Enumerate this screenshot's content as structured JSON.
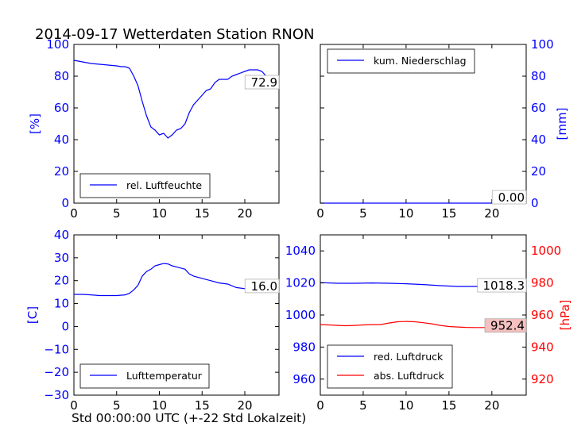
{
  "figure": {
    "title": "2014-09-17 Wetterdaten Station RNON",
    "xlabel": "Std 00:00:00 UTC (+-22 Std Lokalzeit)"
  },
  "colors": {
    "blue": "#0000ff",
    "red": "#ff0000",
    "black": "#000000",
    "valuebox_red": "#f5c0c0"
  },
  "chart_data": [
    {
      "type": "line",
      "id": "humidity",
      "xlim": [
        0,
        24
      ],
      "ylim": [
        0,
        100
      ],
      "xticks": [
        "0",
        "5",
        "10",
        "15",
        "20"
      ],
      "yticks": [
        "0",
        "20",
        "40",
        "60",
        "80",
        "100"
      ],
      "ylabel": "[%]",
      "grid": false,
      "legend_position": "lower-left",
      "current_value": "72.9",
      "series": [
        {
          "name": "rel. Luftfeuchte",
          "color": "#0000ff",
          "x": [
            0,
            0.5,
            1,
            2,
            3,
            4,
            5,
            5.5,
            6,
            6.5,
            7,
            7.5,
            8,
            8.5,
            9,
            9.5,
            10,
            10.5,
            11,
            11.5,
            12,
            12.5,
            13,
            13.5,
            14,
            14.5,
            15,
            15.5,
            16,
            16.5,
            17,
            17.5,
            18,
            18.5,
            19,
            19.5,
            20,
            20.5,
            21,
            21.5,
            22,
            22.5,
            23,
            23.5,
            24
          ],
          "y": [
            90,
            89.5,
            89,
            88,
            87.5,
            87,
            86.5,
            86,
            86,
            85,
            80,
            74,
            64,
            55,
            48,
            46,
            43,
            44,
            41,
            43,
            46,
            47,
            50,
            57,
            62,
            65,
            68,
            71,
            72,
            76,
            78,
            78,
            78,
            80,
            81,
            82,
            83,
            84,
            84,
            84,
            83,
            80,
            78,
            76,
            73
          ]
        }
      ]
    },
    {
      "type": "line",
      "id": "precipitation",
      "xlim": [
        0,
        24
      ],
      "ylim": [
        0,
        100
      ],
      "xticks": [
        "0",
        "5",
        "10",
        "15",
        "20"
      ],
      "yticks": [
        "0",
        "20",
        "40",
        "60",
        "80",
        "100"
      ],
      "ylabel": "[mm]",
      "yaxis_side": "right",
      "grid": false,
      "legend_position": "top-left",
      "current_value": "0.00",
      "series": [
        {
          "name": "kum. Niederschlag",
          "color": "#0000ff",
          "x": [
            0,
            24
          ],
          "y": [
            0,
            0
          ]
        }
      ]
    },
    {
      "type": "line",
      "id": "temperature",
      "xlim": [
        0,
        24
      ],
      "ylim": [
        -30,
        40
      ],
      "xticks": [
        "0",
        "5",
        "10",
        "15",
        "20"
      ],
      "yticks": [
        "−30",
        "−20",
        "−10",
        "0",
        "10",
        "20",
        "30",
        "40"
      ],
      "ylabel": "[C]",
      "grid": false,
      "legend_position": "lower-left",
      "current_value": "16.0",
      "series": [
        {
          "name": "Lufttemperatur",
          "color": "#0000ff",
          "x": [
            0,
            1,
            2,
            3,
            4,
            5,
            6,
            6.5,
            7,
            7.5,
            8,
            8.5,
            9,
            9.5,
            10,
            10.5,
            11,
            11.5,
            12,
            12.5,
            13,
            13.5,
            14,
            14.5,
            15,
            15.5,
            16,
            17,
            18,
            19,
            20,
            21,
            22,
            23,
            24
          ],
          "y": [
            14,
            14,
            13.8,
            13.5,
            13.5,
            13.5,
            13.8,
            14.5,
            16,
            18,
            22,
            24,
            25,
            26.5,
            27,
            27.5,
            27.3,
            26.5,
            26,
            25.5,
            25,
            23,
            22,
            21.5,
            21,
            20.5,
            20,
            19,
            18.5,
            17,
            16.5,
            16,
            16,
            16,
            16
          ]
        }
      ]
    },
    {
      "type": "line",
      "id": "pressure",
      "xlim": [
        0,
        24
      ],
      "ylim": [
        950,
        1050
      ],
      "y2lim": [
        910,
        1010
      ],
      "xticks": [
        "0",
        "5",
        "10",
        "15",
        "20"
      ],
      "yticks": [
        "960",
        "980",
        "1000",
        "1020",
        "1040"
      ],
      "y2ticks": [
        "920",
        "940",
        "960",
        "980",
        "1000"
      ],
      "y2label": "[hPa]",
      "grid": false,
      "legend_position": "lower-left",
      "current_value_left": "1018.3",
      "current_value_right": "952.4",
      "series": [
        {
          "name": "red. Luftdruck",
          "color": "#0000ff",
          "axis": "left",
          "x": [
            0,
            2,
            4,
            6,
            8,
            10,
            12,
            14,
            16,
            18,
            20,
            22,
            24
          ],
          "y": [
            1020.2,
            1019.8,
            1019.8,
            1020,
            1019.8,
            1019.5,
            1019,
            1018.3,
            1017.8,
            1017.8,
            1018,
            1018.2,
            1018.3
          ]
        },
        {
          "name": "abs. Luftdruck",
          "color": "#ff0000",
          "axis": "right",
          "x": [
            0,
            1,
            2,
            3,
            4,
            5,
            6,
            7,
            7.5,
            8,
            9,
            10,
            11,
            12,
            13,
            14,
            15,
            16,
            17,
            18,
            19,
            20,
            21,
            22,
            23,
            24
          ],
          "y": [
            954,
            953.8,
            953.5,
            953.3,
            953.5,
            953.8,
            954,
            954,
            954.5,
            955,
            955.8,
            956,
            955.8,
            955.2,
            954.5,
            953.5,
            952.8,
            952.5,
            952.3,
            952.2,
            952.2,
            952.3,
            952.4,
            952.4,
            952.4,
            952.4
          ]
        }
      ]
    }
  ]
}
